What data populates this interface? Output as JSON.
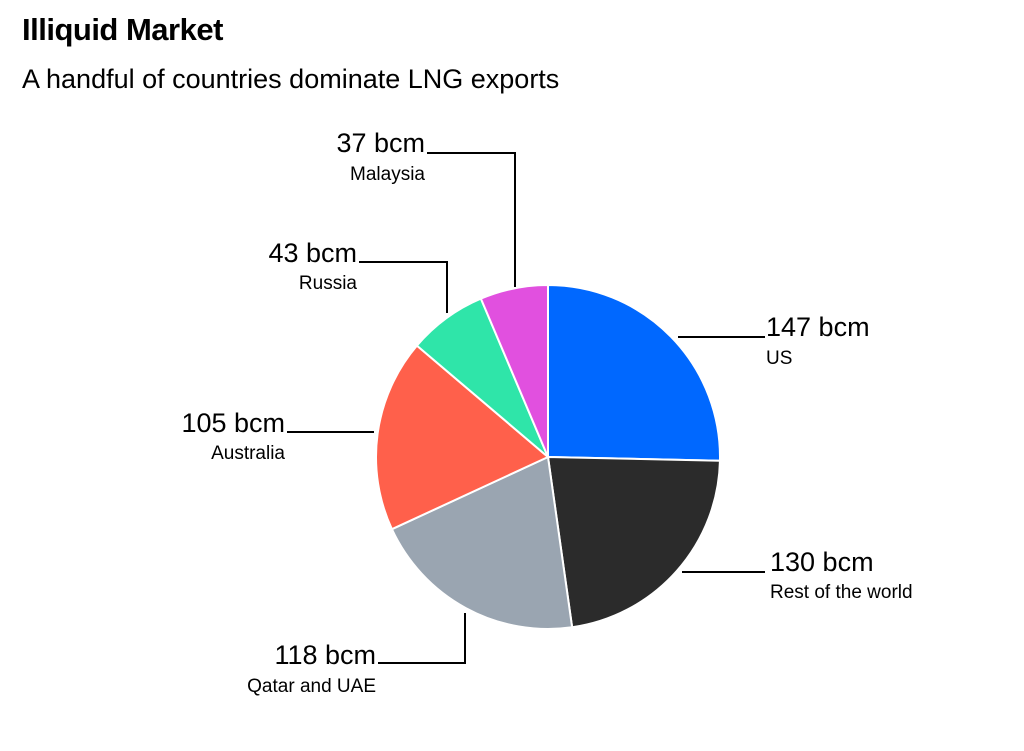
{
  "title": "Illiquid Market",
  "subtitle": "A handful of countries dominate LNG exports",
  "chart_data": {
    "type": "pie",
    "unit": "bcm",
    "slices": [
      {
        "name": "US",
        "value": 147,
        "label": "147 bcm",
        "color": "#0068ff"
      },
      {
        "name": "Rest of the world",
        "value": 130,
        "label": "130 bcm",
        "color": "#2b2b2b"
      },
      {
        "name": "Qatar and UAE",
        "value": 118,
        "label": "118 bcm",
        "color": "#9aa5b1"
      },
      {
        "name": "Australia",
        "value": 105,
        "label": "105 bcm",
        "color": "#ff604b"
      },
      {
        "name": "Russia",
        "value": 43,
        "label": "43 bcm",
        "color": "#2fe5a9"
      },
      {
        "name": "Malaysia",
        "value": 37,
        "label": "37 bcm",
        "color": "#e150df"
      }
    ]
  }
}
